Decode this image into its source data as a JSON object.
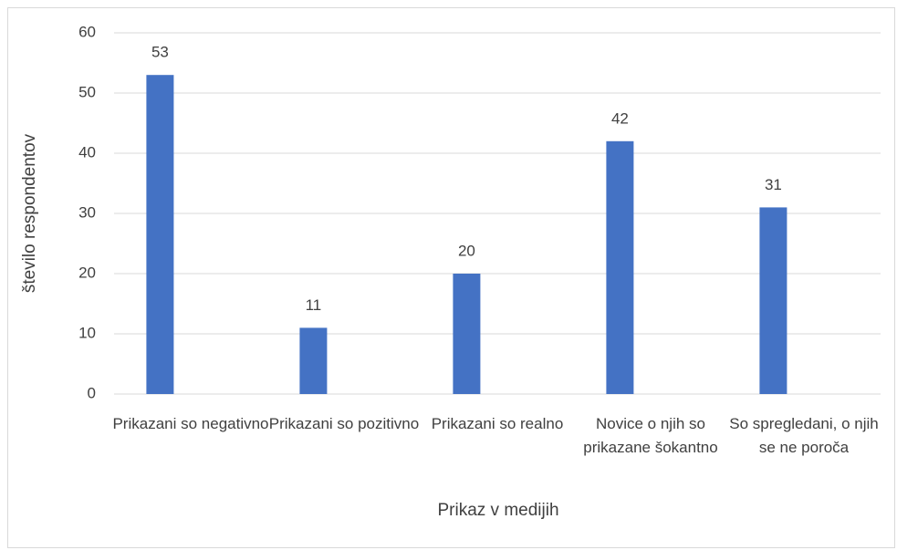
{
  "chart_data": {
    "type": "bar",
    "categories": [
      "Prikazani so negativno",
      "Prikazani so pozitivno",
      "Prikazani so realno",
      "Novice o njih so prikazane šokantno",
      "So spregledani, o njih se ne poroča"
    ],
    "values": [
      53,
      11,
      20,
      42,
      31
    ],
    "color": "#4472c4",
    "x_label": "Prikaz v medijih",
    "y_label": "število respondentov",
    "ylim": [
      0,
      60
    ],
    "yticks": [
      0,
      10,
      20,
      30,
      40,
      50,
      60
    ],
    "grid": true
  }
}
